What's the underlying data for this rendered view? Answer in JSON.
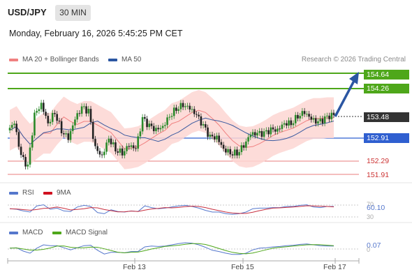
{
  "header": {
    "symbol": "USD/JPY",
    "timeframe": "30 MIN",
    "datetime": "Monday, February 16, 2026 5:45:25 PM CET"
  },
  "legend": {
    "ma20_bb": "MA 20 + Bollinger Bands",
    "ma50": "MA 50",
    "source": "Research © 2026 Trading Central"
  },
  "levels": {
    "r2": "154.64",
    "r1": "154.26",
    "current": "153.48",
    "pivot": "152.91",
    "s1": "152.29",
    "s2": "151.91"
  },
  "rsi": {
    "label": "RSI",
    "ma_label": "9MA",
    "value": "60.10",
    "upper": "70",
    "lower": "30"
  },
  "macd": {
    "label": "MACD",
    "signal_label": "MACD Signal",
    "value": "0.07",
    "zero": "0"
  },
  "x_axis": {
    "ticks": [
      "Feb 13",
      "Feb 15",
      "Feb 17"
    ]
  },
  "colors": {
    "resistance": "#4ea71a",
    "pivot": "#2f5fd0",
    "support": "#e05050",
    "current_box": "#333333",
    "arrow": "#2b56a2",
    "bollinger_fill": "#fdd6d2",
    "ma20": "#f08080",
    "ma50": "#3a5aa0",
    "candle_up": "#2a8a2a",
    "candle_down": "#222222",
    "rsi": "#5577cc",
    "rsi_ma": "#c83040",
    "macd": "#5577cc",
    "macd_signal": "#4ea71a"
  },
  "chart_data": {
    "type": "line",
    "symbol": "USD/JPY",
    "timeframe": "30 MIN",
    "levels": [
      154.64,
      154.26,
      153.48,
      152.91,
      152.29,
      151.91
    ],
    "x_ticks": [
      "Feb 13",
      "Feb 15",
      "Feb 17"
    ],
    "close": [
      153.1,
      153.3,
      152.4,
      152.1,
      153.5,
      153.8,
      153.3,
      153.6,
      153.1,
      152.9,
      153.4,
      153.7,
      153.6,
      152.6,
      152.4,
      152.9,
      152.6,
      152.5,
      152.7,
      152.6,
      153.4,
      153.2,
      153.1,
      153.2,
      153.5,
      153.7,
      153.8,
      153.7,
      153.5,
      153.2,
      152.9,
      152.9,
      152.6,
      152.5,
      152.5,
      152.7,
      153.0,
      153.0,
      153.0,
      153.1,
      153.1,
      153.3,
      153.3,
      153.5,
      153.6,
      153.4,
      153.3,
      153.4,
      153.5
    ],
    "rsi": [
      52,
      50,
      44,
      40,
      62,
      66,
      50,
      54,
      44,
      42,
      58,
      64,
      60,
      38,
      34,
      48,
      42,
      40,
      44,
      42,
      62,
      56,
      52,
      54,
      58,
      62,
      64,
      60,
      54,
      46,
      40,
      40,
      34,
      32,
      34,
      40,
      52,
      54,
      54,
      56,
      56,
      60,
      60,
      64,
      66,
      58,
      56,
      60,
      60.1
    ],
    "macd": [
      0.02,
      0.03,
      -0.05,
      -0.1,
      0.02,
      0.1,
      0.08,
      0.08,
      0.03,
      -0.02,
      0.03,
      0.08,
      0.09,
      -0.03,
      -0.12,
      -0.08,
      -0.08,
      -0.09,
      -0.06,
      -0.06,
      0.05,
      0.07,
      0.06,
      0.07,
      0.1,
      0.13,
      0.15,
      0.14,
      0.1,
      0.04,
      -0.03,
      -0.06,
      -0.1,
      -0.13,
      -0.13,
      -0.1,
      -0.02,
      0.02,
      0.03,
      0.05,
      0.06,
      0.08,
      0.09,
      0.11,
      0.12,
      0.1,
      0.08,
      0.07,
      0.07
    ]
  }
}
